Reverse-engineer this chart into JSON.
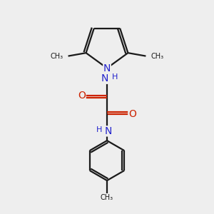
{
  "bg_color": "#eeeeee",
  "bond_color": "#1a1a1a",
  "N_color": "#2222cc",
  "O_color": "#cc2200",
  "line_width": 1.6,
  "font_size_atom": 9,
  "fig_size": [
    3.0,
    3.0
  ],
  "dpi": 100,
  "xlim": [
    0,
    10
  ],
  "ylim": [
    0,
    10
  ]
}
